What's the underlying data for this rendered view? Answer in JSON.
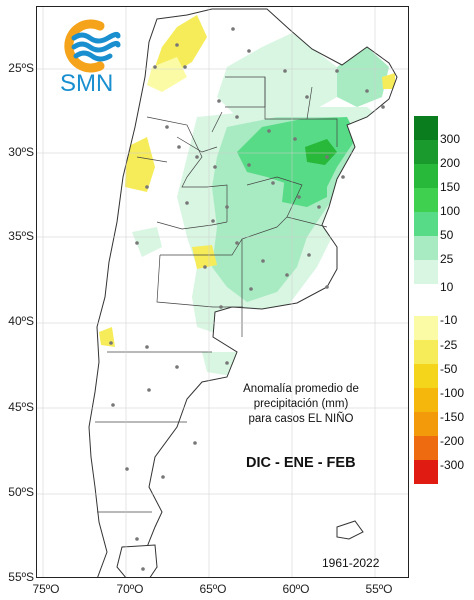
{
  "branding": {
    "logo_text": "SMN"
  },
  "caption": {
    "lines": [
      "Anomalía promedio de",
      "precipitación (mm)",
      "para casos EL NIÑO"
    ]
  },
  "season": "DIC - ENE - FEB",
  "period": "1961-2022",
  "axes": {
    "lat_labels": [
      "25ºS",
      "30ºS",
      "35ºS",
      "40ºS",
      "45ºS",
      "50ºS",
      "55ºS"
    ],
    "lon_labels": [
      "75ºO",
      "70ºO",
      "65ºO",
      "60ºO",
      "55ºO"
    ]
  },
  "legend": {
    "positive": [
      {
        "label": "300",
        "color": "#0a7d1e"
      },
      {
        "label": "200",
        "color": "#1a9a2c"
      },
      {
        "label": "150",
        "color": "#28b83a"
      },
      {
        "label": "100",
        "color": "#3fd04f"
      },
      {
        "label": "50",
        "color": "#58db86"
      },
      {
        "label": "25",
        "color": "#a8ebc2"
      },
      {
        "label": "10",
        "color": "#d8f6e2"
      }
    ],
    "negative": [
      {
        "label": "-10",
        "color": "#fbfba6"
      },
      {
        "label": "-25",
        "color": "#f6ec5a"
      },
      {
        "label": "-50",
        "color": "#f5d51c"
      },
      {
        "label": "-100",
        "color": "#f5b70b"
      },
      {
        "label": "-150",
        "color": "#f39a0b"
      },
      {
        "label": "-200",
        "color": "#ee6b0f"
      },
      {
        "label": "-300",
        "color": "#e01c12"
      }
    ]
  }
}
